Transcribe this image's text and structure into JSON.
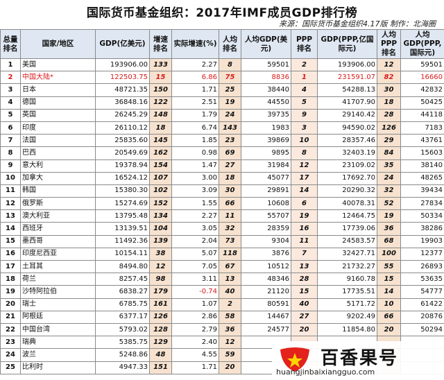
{
  "title": "国际货币基金组织：2017年IMF成员GDP排行榜",
  "source": "来源：国际货币基金组织4.17版 制作：北海圈",
  "headers": {
    "rank": "总量排名",
    "country": "国家/地区",
    "gdp": "GDP(亿美元)",
    "growth_rank": "增速排名",
    "growth": "实际增速(%)",
    "pc_rank": "人均排名",
    "pc": "人均GDP(美元)",
    "ppp_rank": "PPP排名",
    "ppp": "GDP(PPP,亿国际元)",
    "ppppc_rank": "人均PPP排名",
    "ppppc": "人均GDP(PPP,国际元)"
  },
  "rows": [
    {
      "rank": "1",
      "country": "美国",
      "gdp": "193906.00",
      "growth_rank": "133",
      "growth": "2.27",
      "pc_rank": "8",
      "pc": "59501",
      "ppp_rank": "2",
      "ppp": "193906.00",
      "ppppc_rank": "12",
      "ppppc": "59501"
    },
    {
      "rank": "2",
      "country": "中国大陆*",
      "gdp": "122503.75",
      "growth_rank": "15",
      "growth": "6.86",
      "pc_rank": "75",
      "pc": "8836",
      "ppp_rank": "1",
      "ppp": "231591.07",
      "ppppc_rank": "82",
      "ppppc": "16660"
    },
    {
      "rank": "3",
      "country": "日本",
      "gdp": "48721.35",
      "growth_rank": "150",
      "growth": "1.71",
      "pc_rank": "25",
      "pc": "38440",
      "ppp_rank": "4",
      "ppp": "54288.13",
      "ppppc_rank": "30",
      "ppppc": "42832"
    },
    {
      "rank": "4",
      "country": "德国",
      "gdp": "36848.16",
      "growth_rank": "122",
      "growth": "2.51",
      "pc_rank": "19",
      "pc": "44550",
      "ppp_rank": "5",
      "ppp": "41707.90",
      "ppppc_rank": "18",
      "ppppc": "50425"
    },
    {
      "rank": "5",
      "country": "英国",
      "gdp": "26245.29",
      "growth_rank": "148",
      "growth": "1.79",
      "pc_rank": "24",
      "pc": "39735",
      "ppp_rank": "9",
      "ppp": "29140.42",
      "ppppc_rank": "28",
      "ppppc": "44118"
    },
    {
      "rank": "6",
      "country": "印度",
      "gdp": "26110.12",
      "growth_rank": "18",
      "growth": "6.74",
      "pc_rank": "143",
      "pc": "1983",
      "ppp_rank": "3",
      "ppp": "94590.02",
      "ppppc_rank": "126",
      "ppppc": "7183"
    },
    {
      "rank": "7",
      "country": "法国",
      "gdp": "25835.60",
      "growth_rank": "145",
      "growth": "1.85",
      "pc_rank": "23",
      "pc": "39869",
      "ppp_rank": "10",
      "ppp": "28357.46",
      "ppppc_rank": "29",
      "ppppc": "43761"
    },
    {
      "rank": "8",
      "country": "巴西",
      "gdp": "20549.69",
      "growth_rank": "162",
      "growth": "0.98",
      "pc_rank": "69",
      "pc": "9895",
      "ppp_rank": "8",
      "ppp": "32403.19",
      "ppppc_rank": "84",
      "ppppc": "15603"
    },
    {
      "rank": "9",
      "country": "意大利",
      "gdp": "19378.94",
      "growth_rank": "154",
      "growth": "1.47",
      "pc_rank": "27",
      "pc": "31984",
      "ppp_rank": "12",
      "ppp": "23109.02",
      "ppppc_rank": "35",
      "ppppc": "38140"
    },
    {
      "rank": "10",
      "country": "加拿大",
      "gdp": "16524.12",
      "growth_rank": "107",
      "growth": "3.00",
      "pc_rank": "18",
      "pc": "45077",
      "ppp_rank": "17",
      "ppp": "17692.70",
      "ppppc_rank": "24",
      "ppppc": "48265"
    },
    {
      "rank": "11",
      "country": "韩国",
      "gdp": "15380.30",
      "growth_rank": "102",
      "growth": "3.09",
      "pc_rank": "30",
      "pc": "29891",
      "ppp_rank": "14",
      "ppp": "20290.32",
      "ppppc_rank": "32",
      "ppppc": "39434"
    },
    {
      "rank": "12",
      "country": "俄罗斯",
      "gdp": "15274.69",
      "growth_rank": "152",
      "growth": "1.55",
      "pc_rank": "66",
      "pc": "10608",
      "ppp_rank": "6",
      "ppp": "40078.31",
      "ppppc_rank": "52",
      "ppppc": "27834"
    },
    {
      "rank": "13",
      "country": "澳大利亚",
      "gdp": "13795.48",
      "growth_rank": "134",
      "growth": "2.27",
      "pc_rank": "11",
      "pc": "55707",
      "ppp_rank": "19",
      "ppp": "12464.75",
      "ppppc_rank": "19",
      "ppppc": "50334"
    },
    {
      "rank": "14",
      "country": "西班牙",
      "gdp": "13139.51",
      "growth_rank": "104",
      "growth": "3.05",
      "pc_rank": "32",
      "pc": "28359",
      "ppp_rank": "16",
      "ppp": "17739.06",
      "ppppc_rank": "36",
      "ppppc": "38286"
    },
    {
      "rank": "15",
      "country": "墨西哥",
      "gdp": "11492.36",
      "growth_rank": "139",
      "growth": "2.04",
      "pc_rank": "73",
      "pc": "9304",
      "ppp_rank": "11",
      "ppp": "24583.57",
      "ppppc_rank": "68",
      "ppppc": "19903"
    },
    {
      "rank": "16",
      "country": "印度尼西亚",
      "gdp": "10154.11",
      "growth_rank": "38",
      "growth": "5.07",
      "pc_rank": "118",
      "pc": "3876",
      "ppp_rank": "7",
      "ppp": "32427.71",
      "ppppc_rank": "100",
      "ppppc": "12377"
    },
    {
      "rank": "17",
      "country": "土耳其",
      "gdp": "8494.80",
      "growth_rank": "12",
      "growth": "7.05",
      "pc_rank": "67",
      "pc": "10512",
      "ppp_rank": "13",
      "ppp": "21732.27",
      "ppppc_rank": "55",
      "ppppc": "26893"
    },
    {
      "rank": "18",
      "country": "荷兰",
      "gdp": "8257.45",
      "growth_rank": "98",
      "growth": "3.11",
      "pc_rank": "13",
      "pc": "48346",
      "ppp_rank": "28",
      "ppp": "9160.78",
      "ppppc_rank": "15",
      "ppppc": "53635"
    },
    {
      "rank": "19",
      "country": "沙特阿拉伯",
      "gdp": "6838.27",
      "growth_rank": "179",
      "growth": "-0.74",
      "pc_rank": "40",
      "pc": "21120",
      "ppp_rank": "15",
      "ppp": "17735.51",
      "ppppc_rank": "14",
      "ppppc": "54777"
    },
    {
      "rank": "20",
      "country": "瑞士",
      "gdp": "6785.75",
      "growth_rank": "161",
      "growth": "1.07",
      "pc_rank": "2",
      "pc": "80591",
      "ppp_rank": "40",
      "ppp": "5171.72",
      "ppppc_rank": "10",
      "ppppc": "61422"
    },
    {
      "rank": "21",
      "country": "阿根廷",
      "gdp": "6377.17",
      "growth_rank": "126",
      "growth": "2.86",
      "pc_rank": "58",
      "pc": "14467",
      "ppp_rank": "27",
      "ppp": "9202.49",
      "ppppc_rank": "66",
      "ppppc": "20876"
    },
    {
      "rank": "22",
      "country": "中国台湾",
      "gdp": "5793.02",
      "growth_rank": "128",
      "growth": "2.79",
      "pc_rank": "36",
      "pc": "24577",
      "ppp_rank": "20",
      "ppp": "11854.80",
      "ppppc_rank": "20",
      "ppppc": "50294"
    },
    {
      "rank": "23",
      "country": "瑞典",
      "gdp": "5385.75",
      "growth_rank": "129",
      "growth": "2.40",
      "pc_rank": "12",
      "pc": "",
      "ppp_rank": "",
      "ppp": "",
      "ppppc_rank": "",
      "ppppc": ""
    },
    {
      "rank": "24",
      "country": "波兰",
      "gdp": "5248.86",
      "growth_rank": "48",
      "growth": "4.55",
      "pc_rank": "59",
      "pc": "",
      "ppp_rank": "",
      "ppp": "",
      "ppppc_rank": "",
      "ppppc": ""
    },
    {
      "rank": "25",
      "country": "比利时",
      "gdp": "4947.33",
      "growth_rank": "151",
      "growth": "1.71",
      "pc_rank": "20",
      "pc": "",
      "ppp_rank": "",
      "ppp": "",
      "ppppc_rank": "",
      "ppppc": ""
    }
  ],
  "highlight_row": 1,
  "watermark": {
    "brand": "百香果号",
    "url": "huangjinbaixiangguo.com"
  },
  "colors": {
    "header_bg": "#dfe7f2",
    "rank_col_bg": "#f6e2cf",
    "highlight_text": "#d81b1b",
    "logo_red": "#e3221b",
    "logo_star": "#ffd400"
  }
}
